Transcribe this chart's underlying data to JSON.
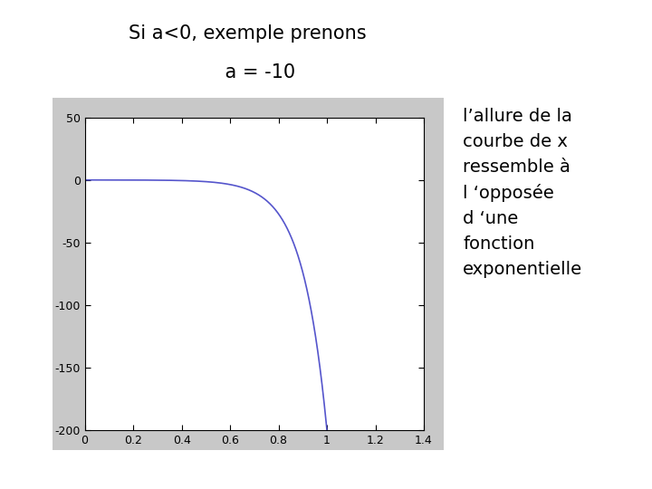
{
  "title_line1": "Si a<0, exemple prenons",
  "title_line2": "    a = -10",
  "a": -10,
  "x_min": 0,
  "x_max": 1.4,
  "y_min": -200,
  "y_max": 50,
  "x_ticks": [
    0,
    0.2,
    0.4,
    0.6,
    0.8,
    1.0,
    1.2,
    1.4
  ],
  "y_ticks": [
    50,
    0,
    -50,
    -100,
    -150,
    -200
  ],
  "plot_bg_color": "#ffffff",
  "outer_bg_color": "#c8c8c8",
  "line_color": "#5555cc",
  "annotation_text": "l’allure de la\ncourbe de x\nressemble à\nl ‘opposée\nd ‘une\nfonction\nexponentielle",
  "title_fontsize": 15,
  "annotation_fontsize": 14,
  "figure_bg_color": "#ffffff",
  "line_width": 1.2,
  "tick_fontsize": 9
}
